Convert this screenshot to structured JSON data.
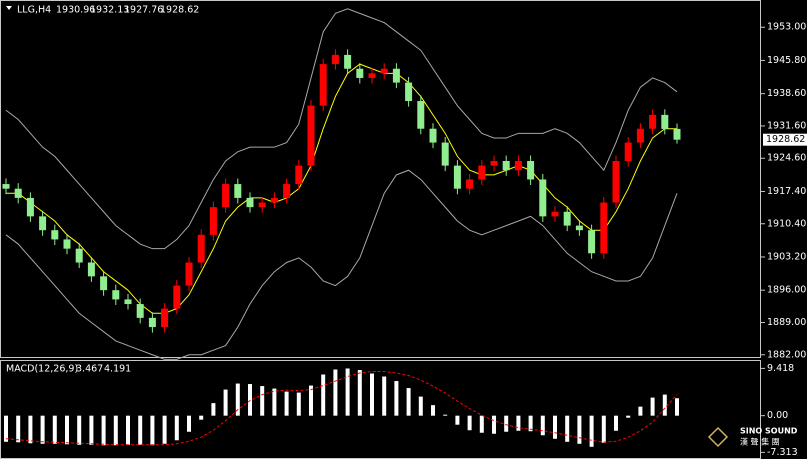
{
  "chart_data": [
    {
      "type": "candlestick",
      "title": "LLG,H4",
      "up_color": "#ff0000",
      "down_color": "#90ee90",
      "candles": {
        "open": [
          1919,
          1918,
          1916,
          1912,
          1909,
          1907,
          1905,
          1902,
          1899,
          1896,
          1894,
          1893,
          1890,
          1888,
          1892,
          1897,
          1902,
          1908,
          1914,
          1919,
          1916,
          1914,
          1915,
          1916,
          1919,
          1923,
          1936,
          1945,
          1947,
          1944,
          1942,
          1943,
          1944,
          1941,
          1937,
          1931,
          1928,
          1923,
          1918,
          1920,
          1923,
          1924,
          1922,
          1924,
          1920,
          1912,
          1913,
          1910,
          1909,
          1904,
          1915,
          1924,
          1928,
          1931,
          1934,
          1930.96
        ],
        "high": [
          1920.2,
          1919.2,
          1917.2,
          1913.2,
          1910.2,
          1908.2,
          1906.2,
          1903.2,
          1900.2,
          1897.2,
          1895.2,
          1894.2,
          1891.2,
          1893.2,
          1898.2,
          1903.2,
          1909.2,
          1915.2,
          1920.2,
          1920.2,
          1917.2,
          1916.2,
          1917.2,
          1920.2,
          1924.2,
          1937.2,
          1946.2,
          1948.2,
          1948.2,
          1945.2,
          1944.2,
          1945.2,
          1945.2,
          1942.2,
          1938.2,
          1932.2,
          1929.2,
          1924.2,
          1921.2,
          1924.2,
          1925.2,
          1925.2,
          1925.2,
          1925.2,
          1921.2,
          1914.2,
          1914.2,
          1911.2,
          1910.2,
          1916.2,
          1925.2,
          1929.2,
          1932.2,
          1935.2,
          1935.2,
          1932.13
        ],
        "low": [
          1916.8,
          1914.8,
          1910.8,
          1907.8,
          1905.8,
          1903.8,
          1900.8,
          1897.8,
          1894.8,
          1892.8,
          1891.8,
          1888.8,
          1886.8,
          1886.8,
          1890.8,
          1895.8,
          1900.8,
          1906.8,
          1912.8,
          1914.8,
          1912.8,
          1912.8,
          1913.8,
          1914.8,
          1917.8,
          1921.8,
          1934.8,
          1943.8,
          1942.8,
          1940.8,
          1940.8,
          1941.8,
          1939.8,
          1935.8,
          1929.8,
          1926.8,
          1921.8,
          1916.8,
          1916.8,
          1918.8,
          1921.8,
          1920.8,
          1920.8,
          1918.8,
          1910.8,
          1910.8,
          1908.8,
          1907.8,
          1902.8,
          1902.8,
          1913.8,
          1922.8,
          1926.8,
          1929.8,
          1929.76,
          1927.76
        ],
        "close": [
          1918,
          1916,
          1912,
          1909,
          1907,
          1905,
          1902,
          1899,
          1896,
          1894,
          1893,
          1890,
          1888,
          1892,
          1897,
          1902,
          1908,
          1914,
          1919,
          1916,
          1914,
          1915,
          1916,
          1919,
          1923,
          1936,
          1945,
          1947,
          1944,
          1942,
          1943,
          1944,
          1941,
          1937,
          1931,
          1928,
          1923,
          1918,
          1920,
          1923,
          1924,
          1922,
          1924,
          1920,
          1912,
          1913,
          1910,
          1909,
          1904,
          1915,
          1924,
          1928,
          1931,
          1934,
          1930.96,
          1928.62
        ]
      },
      "series": [
        {
          "color": "#a8a8a8",
          "values": [
            1935,
            1933,
            1930,
            1927,
            1925,
            1922,
            1919,
            1916,
            1913,
            1910,
            1908,
            1906,
            1905,
            1905,
            1907,
            1910,
            1915,
            1920,
            1924,
            1926,
            1927,
            1927,
            1927,
            1928,
            1932,
            1942,
            1952,
            1956,
            1957,
            1956,
            1955,
            1954,
            1952,
            1950,
            1948,
            1944,
            1940,
            1936,
            1933,
            1930,
            1929,
            1929,
            1930,
            1930,
            1930,
            1931,
            1930,
            1928,
            1925,
            1922,
            1928,
            1935,
            1940,
            1942,
            1941,
            1939
          ]
        },
        {
          "color": "#a8a8a8",
          "values": [
            1908,
            1906,
            1903,
            1900,
            1897,
            1894,
            1891,
            1889,
            1887,
            1885,
            1884,
            1883,
            1882,
            1881,
            1881,
            1882,
            1882,
            1883,
            1884,
            1888,
            1893,
            1897,
            1900,
            1902,
            1903,
            1901,
            1898,
            1897,
            1899,
            1903,
            1910,
            1917,
            1921,
            1922,
            1920,
            1917,
            1914,
            1911,
            1909,
            1908,
            1909,
            1910,
            1911,
            1912,
            1910,
            1907,
            1904,
            1902,
            1900,
            1899,
            1898,
            1898,
            1899,
            1903,
            1910,
            1917
          ]
        },
        {
          "color": "#ffff00",
          "values": [
            1917,
            1917,
            1915,
            1913,
            1911,
            1908,
            1906,
            1903,
            1900,
            1898,
            1896,
            1893,
            1891,
            1891,
            1892,
            1895,
            1900,
            1905,
            1911,
            1914,
            1916,
            1916,
            1915,
            1916,
            1918,
            1923,
            1931,
            1938,
            1943,
            1945,
            1944,
            1943,
            1943,
            1941,
            1938,
            1934,
            1930,
            1925,
            1922,
            1921,
            1921,
            1922,
            1923,
            1922,
            1919,
            1916,
            1914,
            1911,
            1909,
            1909,
            1913,
            1918,
            1924,
            1929,
            1931,
            1931
          ]
        }
      ],
      "ylim": [
        1881.3,
        1958.9
      ],
      "yticks": [
        {
          "value": 1953,
          "label": "1953.00"
        },
        {
          "value": 1945.8,
          "label": "1945.80"
        },
        {
          "value": 1938.6,
          "label": "1938.60"
        },
        {
          "value": 1931.6,
          "label": "1931.60"
        },
        {
          "value": 1924.6,
          "label": "1924.60"
        },
        {
          "value": 1917.4,
          "label": "1917.40"
        },
        {
          "value": 1910.4,
          "label": "1910.40"
        },
        {
          "value": 1903.2,
          "label": "1903.20"
        },
        {
          "value": 1896,
          "label": "1896.00"
        },
        {
          "value": 1889,
          "label": "1889.00"
        },
        {
          "value": 1882,
          "label": "1882.00"
        }
      ]
    },
    {
      "type": "macd",
      "title": "MACD(12,26,9)",
      "series": [
        {
          "color": "#ffffff",
          "values": [
            -5.2,
            -5.3,
            -5.5,
            -5.6,
            -5.6,
            -5.7,
            -5.8,
            -5.8,
            -5.9,
            -5.9,
            -5.8,
            -5.8,
            -5.9,
            -5.6,
            -4.9,
            -3.2,
            -0.8,
            2.5,
            5.2,
            6.4,
            6.3,
            5.9,
            5.4,
            4.8,
            4.6,
            6.0,
            8.2,
            9.2,
            9.4,
            9.1,
            8.4,
            7.8,
            6.9,
            5.5,
            3.8,
            2.1,
            0.2,
            -1.8,
            -2.9,
            -3.4,
            -3.6,
            -3.2,
            -3.0,
            -3.1,
            -3.9,
            -4.6,
            -5.2,
            -5.6,
            -6.2,
            -5.4,
            -3.0,
            -0.4,
            1.8,
            3.6,
            4.2,
            3.467
          ]
        },
        {
          "color": "#ff0000",
          "values": [
            -4.6,
            -4.8,
            -5.0,
            -5.2,
            -5.3,
            -5.4,
            -5.5,
            -5.6,
            -5.7,
            -5.8,
            -5.8,
            -5.8,
            -5.8,
            -5.8,
            -5.6,
            -5.1,
            -4.3,
            -2.9,
            -1.0,
            1.2,
            3.0,
            4.2,
            4.9,
            5.1,
            5.0,
            5.2,
            6.0,
            6.9,
            7.8,
            8.5,
            8.8,
            8.8,
            8.5,
            8.0,
            7.1,
            5.9,
            4.5,
            2.9,
            1.4,
            0.1,
            -1.0,
            -1.8,
            -2.4,
            -2.7,
            -3.0,
            -3.4,
            -3.9,
            -4.4,
            -4.9,
            -5.3,
            -5.1,
            -4.3,
            -3.0,
            -1.3,
            1.5,
            4.191
          ]
        }
      ],
      "ylim": [
        -8.63,
        11.09
      ],
      "yticks": [
        9.418,
        {
          "value": 0,
          "label": "0.00"
        },
        -7.313
      ]
    }
  ],
  "watermark": {
    "brand": "SINO SOUND",
    "chinese": "漢 聲 集 團"
  }
}
